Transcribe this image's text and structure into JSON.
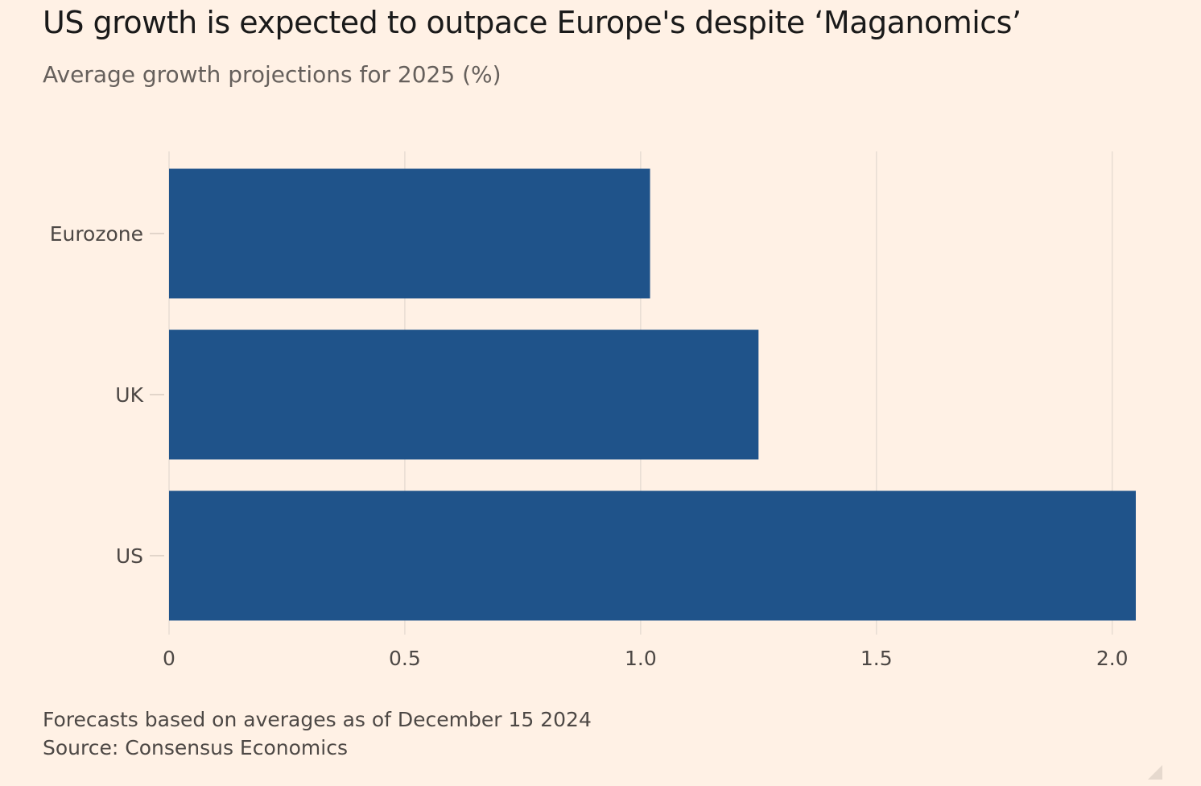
{
  "chart_data": {
    "type": "bar",
    "orientation": "horizontal",
    "title": "US growth is expected to outpace Europe's despite ‘Maganomics’",
    "subtitle": "Average growth projections for 2025 (%)",
    "categories": [
      "Eurozone",
      "UK",
      "US"
    ],
    "values": [
      1.02,
      1.25,
      2.05
    ],
    "xlim": [
      0,
      2.05
    ],
    "xticks": [
      0,
      0.5,
      1.0,
      1.5,
      2.0
    ],
    "xtick_labels": [
      "0",
      "0.5",
      "1.0",
      "1.5",
      "2.0"
    ],
    "grid": "vertical",
    "bar_color": "#1f538a"
  },
  "footer": {
    "note": "Forecasts based on averages as of December 15 2024",
    "source": "Source: Consensus Economics"
  }
}
